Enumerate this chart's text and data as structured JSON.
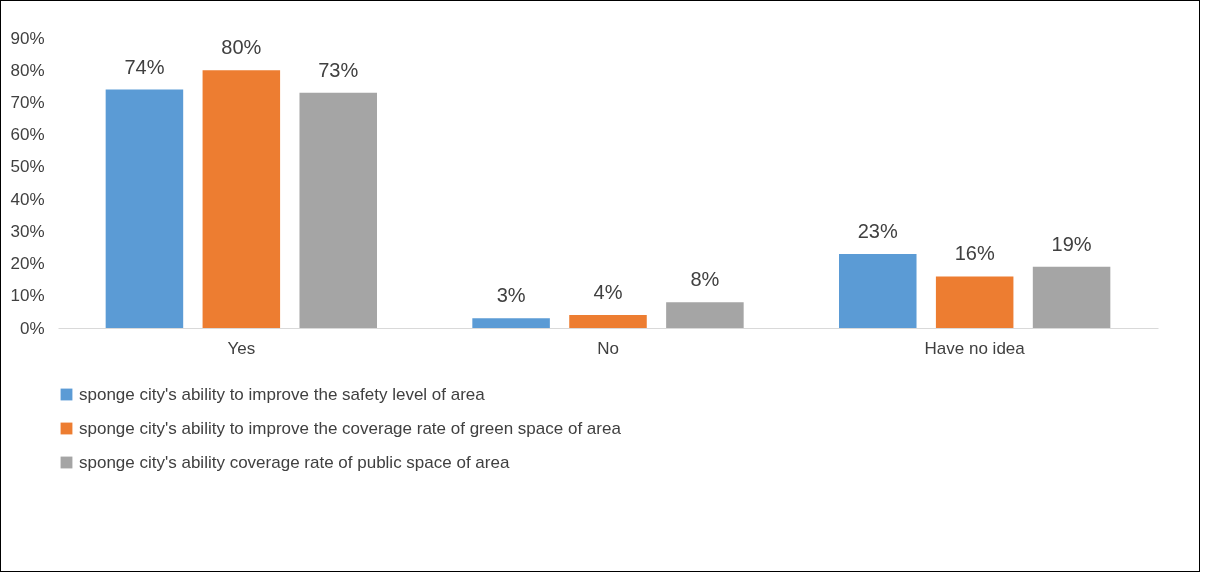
{
  "chart_data": {
    "type": "bar",
    "categories": [
      "Yes",
      "No",
      "Have no idea"
    ],
    "series": [
      {
        "name": "sponge city's ability to improve the safety level of area",
        "color": "#5b9bd5",
        "values": [
          74,
          3,
          23
        ],
        "value_labels": [
          "74%",
          "3%",
          "23%"
        ]
      },
      {
        "name": "sponge city's ability to improve the coverage rate of green space of area",
        "color": "#ed7d31",
        "values": [
          80,
          4,
          16
        ],
        "value_labels": [
          "80%",
          "4%",
          "16%"
        ]
      },
      {
        "name": "sponge city's ability coverage rate of public space of area",
        "color": "#a5a5a5",
        "values": [
          73,
          8,
          19
        ],
        "value_labels": [
          "73%",
          "8%",
          "19%"
        ]
      }
    ],
    "ylim": [
      0,
      90
    ],
    "yticks": [
      {
        "value": 0,
        "label": "0%"
      },
      {
        "value": 10,
        "label": "10%"
      },
      {
        "value": 20,
        "label": "20%"
      },
      {
        "value": 30,
        "label": "30%"
      },
      {
        "value": 40,
        "label": "40%"
      },
      {
        "value": 50,
        "label": "50%"
      },
      {
        "value": 60,
        "label": "60%"
      },
      {
        "value": 70,
        "label": "70%"
      },
      {
        "value": 80,
        "label": "80%"
      },
      {
        "value": 90,
        "label": "90%"
      }
    ],
    "grid": false,
    "legend": "bottom"
  }
}
